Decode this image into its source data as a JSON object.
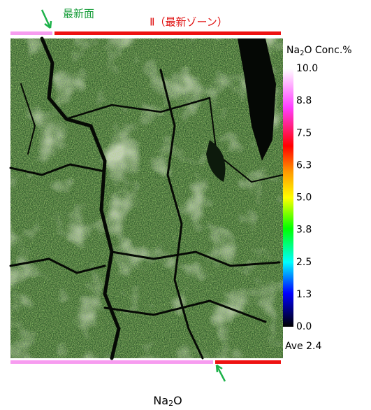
{
  "top_labels": {
    "surface": "最新面",
    "zone": "Ⅱ（最新ゾーン）"
  },
  "legend": {
    "title_parts": [
      "Na",
      "2",
      "O Conc.%"
    ],
    "ticks": [
      "10.0",
      "8.8",
      "7.5",
      "6.3",
      "5.0",
      "3.8",
      "2.5",
      "1.3",
      "0.0"
    ],
    "average": "Ave 2.4"
  },
  "caption_parts": [
    "Na",
    "2",
    "O"
  ]
}
